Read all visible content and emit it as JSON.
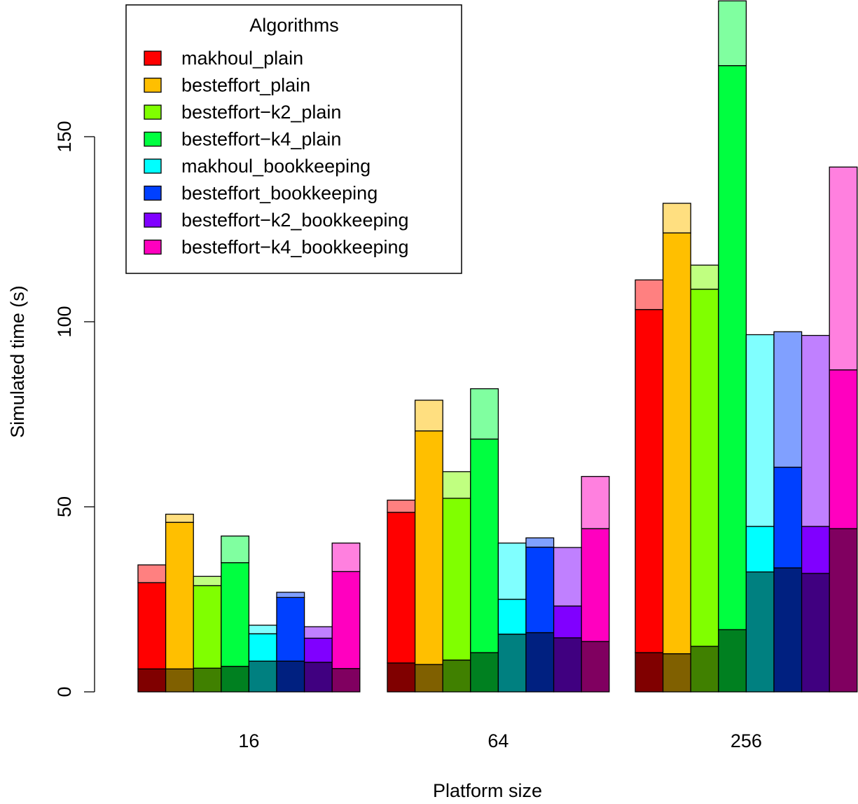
{
  "chart_data": {
    "type": "bar",
    "stacked": true,
    "segments_per_bar": [
      "bottom (dark)",
      "middle (base color)",
      "top (light)"
    ],
    "xlabel": "Platform size",
    "ylabel": "Simulated time (s)",
    "ylim": [
      0,
      187
    ],
    "yticks": [
      0,
      50,
      100,
      150
    ],
    "grid": false,
    "legend": {
      "title": "Algorithms",
      "position": "top-left"
    },
    "categories": [
      "16",
      "64",
      "256"
    ],
    "series": [
      {
        "name": "makhoul_plain",
        "color": "#FF0000",
        "dark": "#800000",
        "light": "#FF8080",
        "bottom": [
          6.2,
          7.8,
          10.6
        ],
        "middle_top": [
          29.5,
          48.5,
          103.3
        ],
        "total": [
          34.3,
          51.8,
          111.3
        ]
      },
      {
        "name": "besteffort_plain",
        "color": "#FFBF00",
        "dark": "#806000",
        "light": "#FFDF80",
        "bottom": [
          6.2,
          7.4,
          10.3
        ],
        "middle_top": [
          45.8,
          70.5,
          124.0
        ],
        "total": [
          48.0,
          78.8,
          132.0
        ]
      },
      {
        "name": "besteffort−k2_plain",
        "color": "#80FF00",
        "dark": "#408000",
        "light": "#C0FF80",
        "bottom": [
          6.4,
          8.6,
          12.3
        ],
        "middle_top": [
          28.7,
          52.3,
          108.8
        ],
        "total": [
          31.2,
          59.5,
          115.3
        ]
      },
      {
        "name": "besteffort−k4_plain",
        "color": "#00FF40",
        "dark": "#008020",
        "light": "#80FFA0",
        "bottom": [
          6.9,
          10.6,
          16.8
        ],
        "middle_top": [
          34.9,
          68.3,
          169.2
        ],
        "total": [
          42.1,
          81.9,
          186.7
        ]
      },
      {
        "name": "makhoul_bookkeeping",
        "color": "#00FFFF",
        "dark": "#008080",
        "light": "#80FFFF",
        "bottom": [
          8.3,
          15.6,
          32.4
        ],
        "middle_top": [
          15.7,
          25.0,
          44.7
        ],
        "total": [
          18.0,
          40.2,
          96.5
        ]
      },
      {
        "name": "besteffort_bookkeeping",
        "color": "#0040FF",
        "dark": "#002080",
        "light": "#80A0FF",
        "bottom": [
          8.3,
          16.0,
          33.5
        ],
        "middle_top": [
          25.5,
          39.1,
          60.7
        ],
        "total": [
          26.9,
          41.6,
          97.3
        ]
      },
      {
        "name": "besteffort−k2_bookkeeping",
        "color": "#8000FF",
        "dark": "#400080",
        "light": "#C080FF",
        "bottom": [
          8.0,
          14.6,
          32.0
        ],
        "middle_top": [
          14.5,
          23.2,
          44.7
        ],
        "total": [
          17.6,
          39.0,
          96.3
        ]
      },
      {
        "name": "besteffort−k4_bookkeeping",
        "color": "#FF00BF",
        "dark": "#800060",
        "light": "#FF80DF",
        "bottom": [
          6.3,
          13.6,
          44.1
        ],
        "middle_top": [
          32.5,
          44.1,
          87.0
        ],
        "total": [
          40.2,
          58.2,
          141.8
        ]
      }
    ]
  }
}
